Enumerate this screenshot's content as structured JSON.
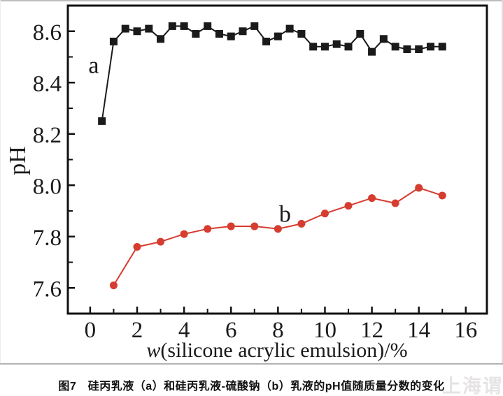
{
  "figure": {
    "caption": "图7　硅丙乳液（a）和硅丙乳液-硫酸钠（b）乳液的pH值随质量分数的变化",
    "watermark": "上海谓载"
  },
  "chart_data": {
    "type": "line",
    "title": "",
    "xlabel": "w(silicone acrylic emulsion)/%",
    "xlabel_italic_prefix": "w",
    "xlabel_rest": "(silicone acrylic emulsion)/%",
    "ylabel": "pH",
    "xlim": [
      -0.95,
      16.9
    ],
    "ylim": [
      7.5,
      8.7
    ],
    "grid": false,
    "legend_position": "inline-labels",
    "axis_color": "#111111",
    "x_ticks": [
      0,
      2,
      4,
      6,
      8,
      10,
      12,
      14,
      16
    ],
    "x_tick_labels": [
      "0",
      "2",
      "4",
      "6",
      "8",
      "10",
      "12",
      "14",
      "16"
    ],
    "x_minor_ticks": [
      1,
      3,
      5,
      7,
      9,
      11,
      13,
      15
    ],
    "y_ticks": [
      7.6,
      7.8,
      8.0,
      8.2,
      8.4,
      8.6
    ],
    "y_tick_labels": [
      "7.6",
      "7.8",
      "8.0",
      "8.2",
      "8.4",
      "8.6"
    ],
    "y_minor_ticks": [
      7.7,
      7.9,
      8.1,
      8.3,
      8.5
    ],
    "series": [
      {
        "name": "a",
        "label": "a",
        "description": "silicone acrylic emulsion",
        "marker": "square",
        "color": "#1a1a1a",
        "label_pos": {
          "x": 0.15,
          "y": 8.47
        },
        "points": [
          [
            0.5,
            8.25
          ],
          [
            1,
            8.56
          ],
          [
            1.5,
            8.61
          ],
          [
            2,
            8.6
          ],
          [
            2.5,
            8.61
          ],
          [
            3,
            8.57
          ],
          [
            3.5,
            8.62
          ],
          [
            4,
            8.62
          ],
          [
            4.5,
            8.59
          ],
          [
            5,
            8.62
          ],
          [
            5.5,
            8.59
          ],
          [
            6,
            8.58
          ],
          [
            6.5,
            8.6
          ],
          [
            7,
            8.62
          ],
          [
            7.5,
            8.56
          ],
          [
            8,
            8.58
          ],
          [
            8.5,
            8.61
          ],
          [
            9,
            8.59
          ],
          [
            9.5,
            8.54
          ],
          [
            10,
            8.54
          ],
          [
            10.5,
            8.55
          ],
          [
            11,
            8.54
          ],
          [
            11.5,
            8.59
          ],
          [
            12,
            8.52
          ],
          [
            12.5,
            8.57
          ],
          [
            13,
            8.54
          ],
          [
            13.5,
            8.53
          ],
          [
            14,
            8.53
          ],
          [
            14.5,
            8.54
          ],
          [
            15,
            8.54
          ]
        ]
      },
      {
        "name": "b",
        "label": "b",
        "description": "silicone acrylic emulsion - sodium sulfate",
        "marker": "circle",
        "color": "#d63c2f",
        "label_pos": {
          "x": 8.3,
          "y": 7.89
        },
        "points": [
          [
            1,
            7.61
          ],
          [
            2,
            7.76
          ],
          [
            3,
            7.78
          ],
          [
            4,
            7.81
          ],
          [
            5,
            7.83
          ],
          [
            6,
            7.84
          ],
          [
            7,
            7.84
          ],
          [
            8,
            7.83
          ],
          [
            9,
            7.85
          ],
          [
            10,
            7.89
          ],
          [
            11,
            7.92
          ],
          [
            12,
            7.95
          ],
          [
            13,
            7.93
          ],
          [
            14,
            7.99
          ],
          [
            15,
            7.96
          ]
        ]
      }
    ]
  }
}
